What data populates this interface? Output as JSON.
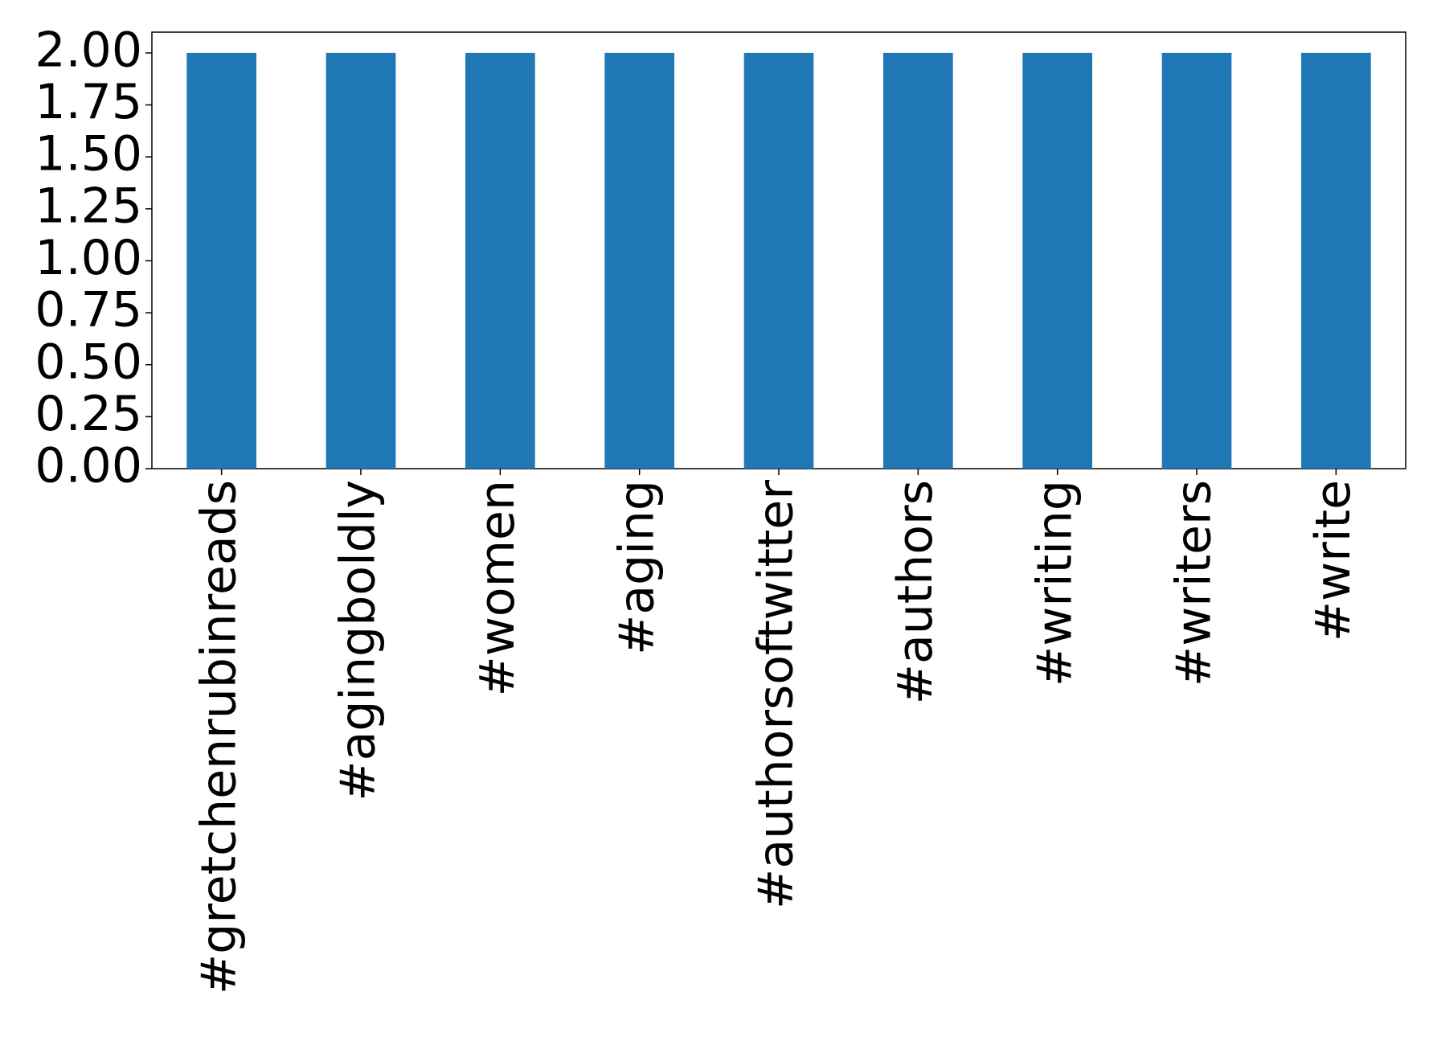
{
  "chart_data": {
    "type": "bar",
    "categories": [
      "#gretchenrubinreads",
      "#agingboldly",
      "#women",
      "#aging",
      "#authorsoftwitter",
      "#authors",
      "#writing",
      "#writers",
      "#write"
    ],
    "values": [
      2,
      2,
      2,
      2,
      2,
      2,
      2,
      2,
      2
    ],
    "color": "#1f77b4",
    "ylim": [
      0,
      2.1
    ],
    "yticks": [
      {
        "value": 0,
        "label": "0.00"
      },
      {
        "value": 0.25,
        "label": "0.25"
      },
      {
        "value": 0.5,
        "label": "0.50"
      },
      {
        "value": 0.75,
        "label": "0.75"
      },
      {
        "value": 1,
        "label": "1.00"
      },
      {
        "value": 1.25,
        "label": "1.25"
      },
      {
        "value": 1.5,
        "label": "1.50"
      },
      {
        "value": 1.75,
        "label": "1.75"
      },
      {
        "value": 2,
        "label": "2.00"
      }
    ],
    "grid": false
  }
}
